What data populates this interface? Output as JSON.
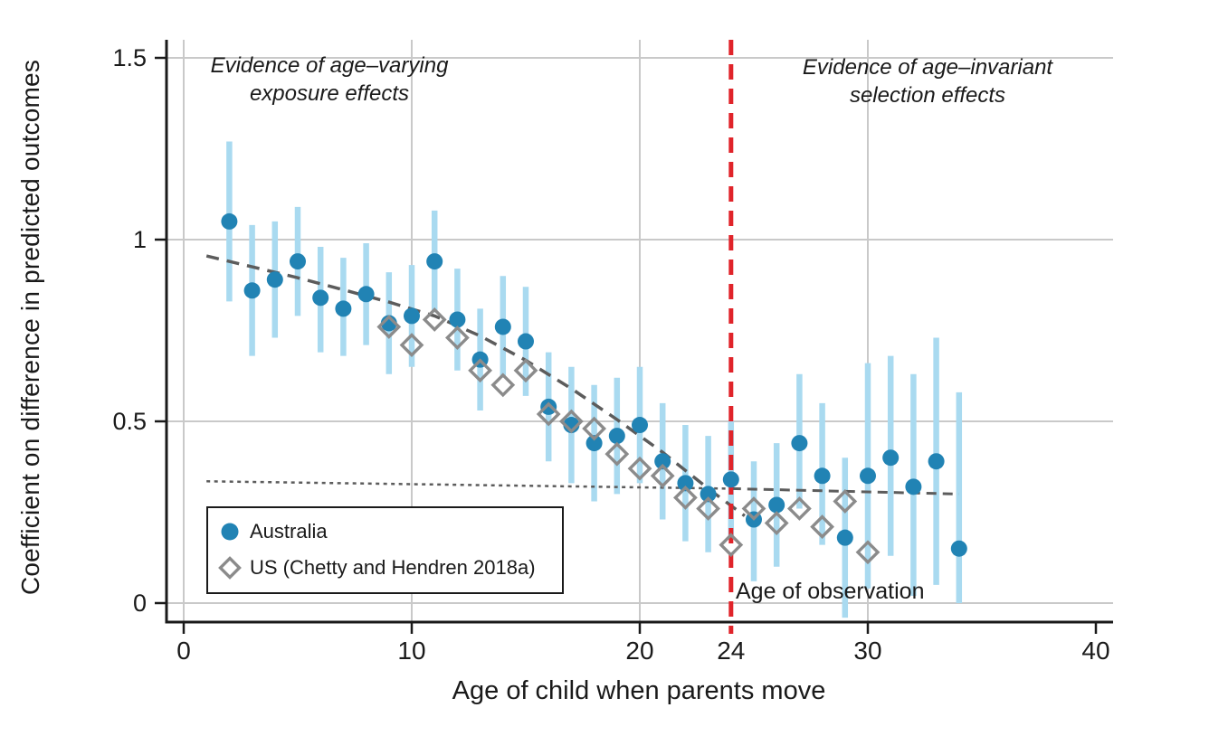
{
  "figure": {
    "y_axis_title": "Coefficient on difference in predicted outcomes",
    "x_axis_title": "Age of child when parents move",
    "annotation_left": "Evidence of age–varying\nexposure effects",
    "annotation_right": "Evidence of age–invariant\nselection effects",
    "vline_label": "Age of observation"
  },
  "legend": {
    "australia_label": "Australia",
    "us_label": "US (Chetty and Hendren 2018a)"
  },
  "colors": {
    "australia_marker": "#2183b4",
    "australia_ci": "#a9daf0",
    "us_marker": "#8b8b8b",
    "fit_line": "#5c5c5c",
    "vline_red": "#e0242a",
    "gridline": "#c9c9c9",
    "axis": "#1a1a1a"
  },
  "chart_data": {
    "type": "scatter",
    "title": "",
    "xlabel": "Age of child when parents move",
    "ylabel": "Coefficient on difference in predicted outcomes",
    "xlim": [
      -0.8,
      40.8
    ],
    "ylim": [
      -0.05,
      1.55
    ],
    "grid": true,
    "x_grid": [
      0,
      10,
      20,
      30
    ],
    "x_ticks": [
      {
        "v": 0,
        "label": "0",
        "tick": true
      },
      {
        "v": 10,
        "label": "10",
        "tick": true
      },
      {
        "v": 20,
        "label": "20",
        "tick": true
      },
      {
        "v": 24,
        "label": "24",
        "tick": false
      },
      {
        "v": 30,
        "label": "30",
        "tick": true
      },
      {
        "v": 40,
        "label": "40",
        "tick": true
      }
    ],
    "y_ticks": [
      {
        "v": 0,
        "label": "0"
      },
      {
        "v": 0.5,
        "label": "0.5"
      },
      {
        "v": 1,
        "label": "1"
      },
      {
        "v": 1.5,
        "label": "1.5"
      }
    ],
    "vline": {
      "x": 24,
      "label": "Age of observation"
    },
    "legend_position": "lower-left",
    "series": [
      {
        "name": "Australia",
        "marker": "circle",
        "points_xylohi": [
          [
            2,
            1.05,
            0.83,
            1.27
          ],
          [
            3,
            0.86,
            0.68,
            1.04
          ],
          [
            4,
            0.89,
            0.73,
            1.05
          ],
          [
            5,
            0.94,
            0.79,
            1.09
          ],
          [
            6,
            0.84,
            0.69,
            0.98
          ],
          [
            7,
            0.81,
            0.68,
            0.95
          ],
          [
            8,
            0.85,
            0.71,
            0.99
          ],
          [
            9,
            0.77,
            0.63,
            0.91
          ],
          [
            10,
            0.79,
            0.65,
            0.93
          ],
          [
            11,
            0.94,
            0.8,
            1.08
          ],
          [
            12,
            0.78,
            0.64,
            0.92
          ],
          [
            13,
            0.67,
            0.53,
            0.81
          ],
          [
            14,
            0.76,
            0.62,
            0.9
          ],
          [
            15,
            0.72,
            0.57,
            0.87
          ],
          [
            16,
            0.54,
            0.39,
            0.69
          ],
          [
            17,
            0.49,
            0.33,
            0.65
          ],
          [
            18,
            0.44,
            0.28,
            0.6
          ],
          [
            19,
            0.46,
            0.3,
            0.62
          ],
          [
            20,
            0.49,
            0.33,
            0.65
          ],
          [
            21,
            0.39,
            0.23,
            0.55
          ],
          [
            22,
            0.33,
            0.17,
            0.49
          ],
          [
            23,
            0.3,
            0.14,
            0.46
          ],
          [
            24,
            0.34,
            0.18,
            0.5
          ],
          [
            25,
            0.23,
            0.06,
            0.39
          ],
          [
            26,
            0.27,
            0.1,
            0.44
          ],
          [
            27,
            0.44,
            0.26,
            0.63
          ],
          [
            28,
            0.35,
            0.16,
            0.55
          ],
          [
            29,
            0.18,
            -0.04,
            0.4
          ],
          [
            30,
            0.35,
            0.04,
            0.66
          ],
          [
            31,
            0.4,
            0.13,
            0.68
          ],
          [
            32,
            0.32,
            0.02,
            0.63
          ],
          [
            33,
            0.39,
            0.05,
            0.73
          ],
          [
            34,
            0.15,
            0.0,
            0.58
          ]
        ]
      },
      {
        "name": "US (Chetty and Hendren 2018a)",
        "marker": "diamond",
        "points_xy": [
          [
            9,
            0.76
          ],
          [
            10,
            0.71
          ],
          [
            11,
            0.78
          ],
          [
            12,
            0.73
          ],
          [
            13,
            0.64
          ],
          [
            14,
            0.6
          ],
          [
            15,
            0.64
          ],
          [
            16,
            0.52
          ],
          [
            17,
            0.5
          ],
          [
            18,
            0.48
          ],
          [
            19,
            0.41
          ],
          [
            20,
            0.37
          ],
          [
            21,
            0.35
          ],
          [
            22,
            0.29
          ],
          [
            23,
            0.26
          ],
          [
            24,
            0.16
          ],
          [
            25,
            0.26
          ],
          [
            26,
            0.22
          ],
          [
            27,
            0.26
          ],
          [
            28,
            0.21
          ],
          [
            29,
            0.28
          ],
          [
            30,
            0.14
          ]
        ]
      }
    ],
    "fit_lines": {
      "exposure_dashed": [
        [
          1.0,
          0.955
        ],
        [
          3,
          0.925
        ],
        [
          5,
          0.895
        ],
        [
          7,
          0.862
        ],
        [
          9,
          0.828
        ],
        [
          11,
          0.79
        ],
        [
          13,
          0.735
        ],
        [
          15,
          0.668
        ],
        [
          17,
          0.59
        ],
        [
          19,
          0.505
        ],
        [
          21,
          0.415
        ],
        [
          23,
          0.315
        ],
        [
          24.6,
          0.24
        ]
      ],
      "selection_dotted": [
        [
          1.0,
          0.335
        ],
        [
          24,
          0.315
        ]
      ],
      "selection_dashed": [
        [
          24,
          0.315
        ],
        [
          34,
          0.3
        ]
      ]
    }
  }
}
